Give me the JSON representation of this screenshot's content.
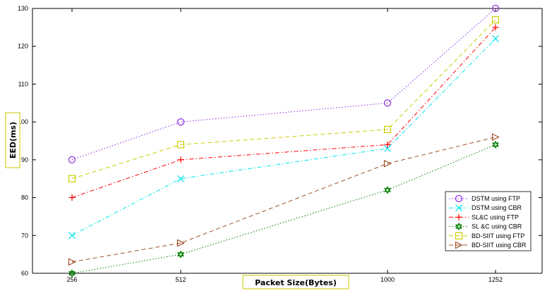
{
  "chart_data": {
    "type": "line",
    "title": "",
    "xlabel": "Packet Size(Bytes)",
    "ylabel": "EED(ms)",
    "categories": [
      "256",
      "512",
      "1000",
      "1252"
    ],
    "ylim": [
      60,
      130
    ],
    "yticks": [
      60,
      70,
      80,
      90,
      100,
      110,
      120,
      130
    ],
    "grid": false,
    "legend_position": "bottom-right",
    "series": [
      {
        "name": "DSTM using FTP",
        "values": [
          90,
          100,
          105,
          130
        ],
        "color": "#8a2be2",
        "dash": "dotted",
        "marker": "circle"
      },
      {
        "name": "DSTM using CBR",
        "values": [
          70,
          85,
          93,
          122
        ],
        "color": "#00e5ee",
        "dash": "dashdot",
        "marker": "x"
      },
      {
        "name": "SL&C using FTP",
        "values": [
          80,
          90,
          94,
          125
        ],
        "color": "#ff0000",
        "dash": "dashdot",
        "marker": "plus"
      },
      {
        "name": "SL &C using CBR",
        "values": [
          60,
          65,
          82,
          94
        ],
        "color": "#008000",
        "dash": "dotted",
        "marker": "hexagram"
      },
      {
        "name": "BD-SIIT using FTP",
        "values": [
          85,
          94,
          98,
          127
        ],
        "color": "#cccc00",
        "dash": "dashed",
        "marker": "square"
      },
      {
        "name": "BD-SIIT using CBR",
        "values": [
          63,
          68,
          89,
          96
        ],
        "color": "#a0522d",
        "dash": "dashed",
        "marker": "triangle-right"
      }
    ]
  }
}
